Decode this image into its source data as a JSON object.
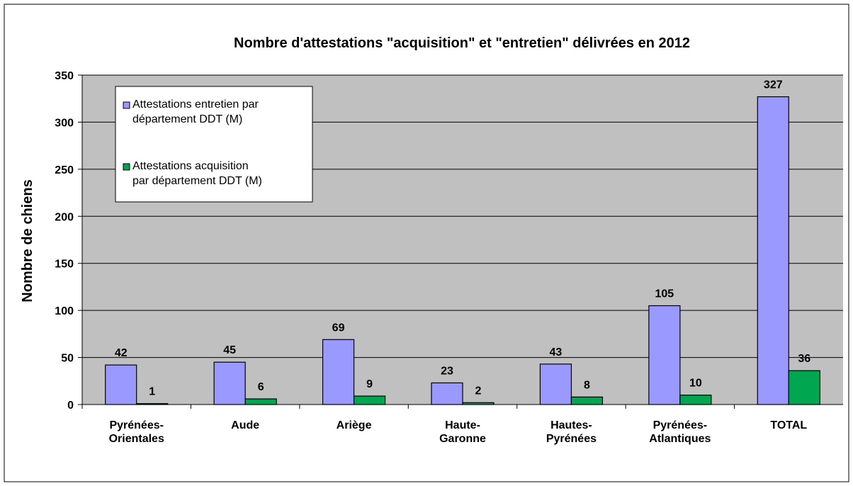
{
  "chart_data": {
    "type": "bar",
    "title": "Nombre d'attestations \"acquisition\" et \"entretien\" délivrées en 2012",
    "y_label": "Nombre de chiens",
    "categories": [
      "Pyrénées-\nOrientales",
      "Aude",
      "Ariège",
      "Haute-\nGaronne",
      "Hautes-\nPyrénées",
      "Pyrénées-\nAtlantiques",
      "TOTAL"
    ],
    "series": [
      {
        "name": "Attestations entretien par\ndépartement DDT (M)",
        "color": "#9999ff",
        "values": [
          42,
          45,
          69,
          23,
          43,
          105,
          327
        ]
      },
      {
        "name": "Attestations acquisition\npar département DDT (M)",
        "color": "#00a650",
        "values": [
          1,
          6,
          9,
          2,
          8,
          10,
          36
        ]
      }
    ],
    "ylim": [
      0,
      350
    ],
    "yticks": [
      0,
      50,
      100,
      150,
      200,
      250,
      300,
      350
    ],
    "grid": true,
    "legend": "top-left"
  }
}
